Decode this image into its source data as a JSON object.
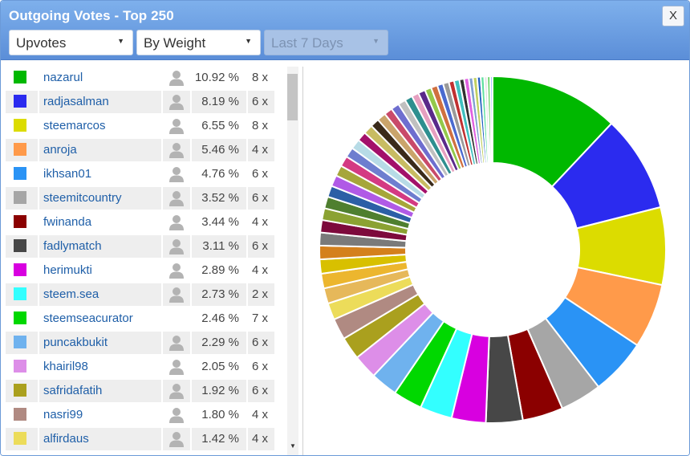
{
  "window": {
    "title": "Outgoing Votes - Top 250",
    "close_label": "X"
  },
  "filters": {
    "vote_type": "Upvotes",
    "sort": "By Weight",
    "range": "Last 7 Days"
  },
  "rows": [
    {
      "name": "nazarul",
      "pct": "10.92 %",
      "count": "8 x",
      "color": "#00b800",
      "icon": true
    },
    {
      "name": "radjasalman",
      "pct": "8.19 %",
      "count": "6 x",
      "color": "#2b2bef",
      "icon": true
    },
    {
      "name": "steemarcos",
      "pct": "6.55 %",
      "count": "8 x",
      "color": "#dcdc00",
      "icon": true
    },
    {
      "name": "anroja",
      "pct": "5.46 %",
      "count": "4 x",
      "color": "#ff9a4a",
      "icon": true
    },
    {
      "name": "ikhsan01",
      "pct": "4.76 %",
      "count": "6 x",
      "color": "#2a93f5",
      "icon": true
    },
    {
      "name": "steemitcountry",
      "pct": "3.52 %",
      "count": "6 x",
      "color": "#a6a6a6",
      "icon": true
    },
    {
      "name": "fwinanda",
      "pct": "3.44 %",
      "count": "4 x",
      "color": "#8b0000",
      "icon": true
    },
    {
      "name": "fadlymatch",
      "pct": "3.11 %",
      "count": "6 x",
      "color": "#474747",
      "icon": true
    },
    {
      "name": "herimukti",
      "pct": "2.89 %",
      "count": "4 x",
      "color": "#d800e0",
      "icon": true
    },
    {
      "name": "steem.sea",
      "pct": "2.73 %",
      "count": "2 x",
      "color": "#33ffff",
      "icon": true
    },
    {
      "name": "steemseacurator",
      "pct": "2.46 %",
      "count": "7 x",
      "color": "#00d800",
      "icon": false
    },
    {
      "name": "puncakbukit",
      "pct": "2.29 %",
      "count": "6 x",
      "color": "#6fb2ee",
      "icon": true
    },
    {
      "name": "khairil98",
      "pct": "2.05 %",
      "count": "6 x",
      "color": "#dd8ee8",
      "icon": true
    },
    {
      "name": "safridafatih",
      "pct": "1.92 %",
      "count": "6 x",
      "color": "#aaa01e",
      "icon": true
    },
    {
      "name": "nasri99",
      "pct": "1.80 %",
      "count": "4 x",
      "color": "#b08a82",
      "icon": true
    },
    {
      "name": "alfirdaus",
      "pct": "1.42 %",
      "count": "4 x",
      "color": "#ecdc5a",
      "icon": true
    }
  ],
  "chart_data": {
    "type": "pie",
    "style": "donut",
    "start": "12 o'clock, clockwise",
    "slices": [
      {
        "label": "nazarul",
        "value": 10.92,
        "color": "#00b800"
      },
      {
        "label": "radjasalman",
        "value": 8.19,
        "color": "#2b2bef"
      },
      {
        "label": "steemarcos",
        "value": 6.55,
        "color": "#dcdc00"
      },
      {
        "label": "anroja",
        "value": 5.46,
        "color": "#ff9a4a"
      },
      {
        "label": "ikhsan01",
        "value": 4.76,
        "color": "#2a93f5"
      },
      {
        "label": "steemitcountry",
        "value": 3.52,
        "color": "#a6a6a6"
      },
      {
        "label": "fwinanda",
        "value": 3.44,
        "color": "#8b0000"
      },
      {
        "label": "fadlymatch",
        "value": 3.11,
        "color": "#474747"
      },
      {
        "label": "herimukti",
        "value": 2.89,
        "color": "#d800e0"
      },
      {
        "label": "steem.sea",
        "value": 2.73,
        "color": "#33ffff"
      },
      {
        "label": "steemseacurator",
        "value": 2.46,
        "color": "#00d800"
      },
      {
        "label": "puncakbukit",
        "value": 2.29,
        "color": "#6fb2ee"
      },
      {
        "label": "khairil98",
        "value": 2.05,
        "color": "#dd8ee8"
      },
      {
        "label": "safridafatih",
        "value": 1.92,
        "color": "#aaa01e"
      },
      {
        "label": "nasri99",
        "value": 1.8,
        "color": "#b08a82"
      },
      {
        "label": "alfirdaus",
        "value": 1.42,
        "color": "#ecdc5a"
      },
      {
        "value": 1.3,
        "color": "#e6b85a"
      },
      {
        "value": 1.25,
        "color": "#ecb62e"
      },
      {
        "value": 1.2,
        "color": "#d8c000"
      },
      {
        "value": 1.15,
        "color": "#d4801c"
      },
      {
        "value": 1.1,
        "color": "#7a7a7a"
      },
      {
        "value": 1.05,
        "color": "#7d0a3c"
      },
      {
        "value": 1.0,
        "color": "#8ba232"
      },
      {
        "value": 1.0,
        "color": "#4f7f2f"
      },
      {
        "value": 0.95,
        "color": "#2c5fa6"
      },
      {
        "value": 0.95,
        "color": "#b05ae6"
      },
      {
        "value": 0.9,
        "color": "#a6a63a"
      },
      {
        "value": 0.9,
        "color": "#d43a82"
      },
      {
        "value": 0.85,
        "color": "#6e7ecf"
      },
      {
        "value": 0.85,
        "color": "#b7dbe6"
      },
      {
        "value": 0.8,
        "color": "#a3106a"
      },
      {
        "value": 0.8,
        "color": "#c8bc62"
      },
      {
        "value": 0.75,
        "color": "#3a2a1a"
      },
      {
        "value": 0.75,
        "color": "#caa46b"
      },
      {
        "value": 0.7,
        "color": "#c94a6a"
      },
      {
        "value": 0.7,
        "color": "#6e6ecf"
      },
      {
        "value": 0.65,
        "color": "#c0c0c0"
      },
      {
        "value": 0.65,
        "color": "#2e8f8f"
      },
      {
        "value": 0.6,
        "color": "#e6a0c0"
      },
      {
        "value": 0.6,
        "color": "#5a2a8a"
      },
      {
        "value": 0.55,
        "color": "#93c94a"
      },
      {
        "value": 0.55,
        "color": "#d07040"
      },
      {
        "value": 0.5,
        "color": "#4a6ad0"
      },
      {
        "value": 0.5,
        "color": "#9a9a9a"
      },
      {
        "value": 0.45,
        "color": "#c03030"
      },
      {
        "value": 0.45,
        "color": "#40c0c0"
      },
      {
        "value": 0.4,
        "color": "#303030"
      },
      {
        "value": 0.4,
        "color": "#e060e0"
      },
      {
        "value": 0.35,
        "color": "#80a0d0"
      },
      {
        "value": 0.35,
        "color": "#c0d060"
      },
      {
        "value": 0.3,
        "color": "#2060c0"
      },
      {
        "value": 0.3,
        "color": "#60e0a0"
      },
      {
        "value": 0.25,
        "color": "#e0e0e0"
      },
      {
        "value": 0.25,
        "color": "#5ad05a"
      },
      {
        "value": 0.2,
        "color": "#a0c0ff"
      }
    ]
  }
}
